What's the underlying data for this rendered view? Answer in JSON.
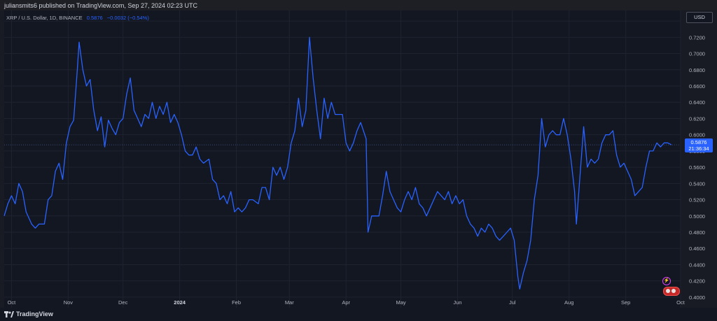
{
  "header": {
    "publisher_text": "juliansmits6 published on TradingView.com, Sep 27, 2024 02:23 UTC"
  },
  "legend": {
    "symbol": "XRP / U.S. Dollar, 1D, BINANCE",
    "last_price": "0.5876",
    "change": "−0.0032 (−0.54%)"
  },
  "currency_button": "USD",
  "last_price_tag": {
    "price": "0.5876",
    "countdown": "21:36:34"
  },
  "footer": {
    "brand": "TradingView"
  },
  "colors": {
    "line": "#2962ff",
    "background": "#131722",
    "grid": "#1f2330",
    "axis_text": "#b2b5be",
    "price_tag": "#2962ff"
  },
  "chart_data": {
    "type": "line",
    "title": "",
    "series": [
      {
        "name": "XRP / U.S. Dollar",
        "points": [
          [
            "2023-09-27",
            0.5
          ],
          [
            "2023-09-29",
            0.515
          ],
          [
            "2023-10-01",
            0.525
          ],
          [
            "2023-10-03",
            0.515
          ],
          [
            "2023-10-05",
            0.54
          ],
          [
            "2023-10-07",
            0.53
          ],
          [
            "2023-10-09",
            0.505
          ],
          [
            "2023-10-12",
            0.49
          ],
          [
            "2023-10-14",
            0.485
          ],
          [
            "2023-10-16",
            0.49
          ],
          [
            "2023-10-19",
            0.49
          ],
          [
            "2023-10-21",
            0.52
          ],
          [
            "2023-10-23",
            0.525
          ],
          [
            "2023-10-25",
            0.555
          ],
          [
            "2023-10-27",
            0.565
          ],
          [
            "2023-10-29",
            0.545
          ],
          [
            "2023-10-31",
            0.59
          ],
          [
            "2023-11-02",
            0.61
          ],
          [
            "2023-11-04",
            0.618
          ],
          [
            "2023-11-06",
            0.68
          ],
          [
            "2023-11-07",
            0.714
          ],
          [
            "2023-11-09",
            0.68
          ],
          [
            "2023-11-11",
            0.66
          ],
          [
            "2023-11-13",
            0.668
          ],
          [
            "2023-11-15",
            0.63
          ],
          [
            "2023-11-17",
            0.605
          ],
          [
            "2023-11-19",
            0.622
          ],
          [
            "2023-11-21",
            0.585
          ],
          [
            "2023-11-23",
            0.618
          ],
          [
            "2023-11-25",
            0.608
          ],
          [
            "2023-11-27",
            0.6
          ],
          [
            "2023-11-29",
            0.615
          ],
          [
            "2023-12-01",
            0.62
          ],
          [
            "2023-12-03",
            0.65
          ],
          [
            "2023-12-05",
            0.67
          ],
          [
            "2023-12-07",
            0.63
          ],
          [
            "2023-12-09",
            0.62
          ],
          [
            "2023-12-11",
            0.61
          ],
          [
            "2023-12-13",
            0.625
          ],
          [
            "2023-12-15",
            0.62
          ],
          [
            "2023-12-17",
            0.64
          ],
          [
            "2023-12-19",
            0.62
          ],
          [
            "2023-12-21",
            0.635
          ],
          [
            "2023-12-23",
            0.625
          ],
          [
            "2023-12-25",
            0.64
          ],
          [
            "2023-12-27",
            0.615
          ],
          [
            "2023-12-29",
            0.625
          ],
          [
            "2023-12-31",
            0.615
          ],
          [
            "2024-01-02",
            0.6
          ],
          [
            "2024-01-04",
            0.58
          ],
          [
            "2024-01-06",
            0.575
          ],
          [
            "2024-01-08",
            0.575
          ],
          [
            "2024-01-10",
            0.585
          ],
          [
            "2024-01-12",
            0.57
          ],
          [
            "2024-01-14",
            0.565
          ],
          [
            "2024-01-17",
            0.57
          ],
          [
            "2024-01-19",
            0.545
          ],
          [
            "2024-01-21",
            0.54
          ],
          [
            "2024-01-23",
            0.52
          ],
          [
            "2024-01-25",
            0.525
          ],
          [
            "2024-01-27",
            0.515
          ],
          [
            "2024-01-29",
            0.53
          ],
          [
            "2024-01-31",
            0.505
          ],
          [
            "2024-02-02",
            0.51
          ],
          [
            "2024-02-04",
            0.505
          ],
          [
            "2024-02-06",
            0.51
          ],
          [
            "2024-02-08",
            0.52
          ],
          [
            "2024-02-10",
            0.52
          ],
          [
            "2024-02-13",
            0.515
          ],
          [
            "2024-02-15",
            0.535
          ],
          [
            "2024-02-17",
            0.535
          ],
          [
            "2024-02-19",
            0.52
          ],
          [
            "2024-02-21",
            0.56
          ],
          [
            "2024-02-23",
            0.55
          ],
          [
            "2024-02-25",
            0.56
          ],
          [
            "2024-02-27",
            0.545
          ],
          [
            "2024-02-29",
            0.56
          ],
          [
            "2024-03-02",
            0.59
          ],
          [
            "2024-03-04",
            0.605
          ],
          [
            "2024-03-06",
            0.645
          ],
          [
            "2024-03-08",
            0.61
          ],
          [
            "2024-03-10",
            0.63
          ],
          [
            "2024-03-12",
            0.72
          ],
          [
            "2024-03-14",
            0.67
          ],
          [
            "2024-03-16",
            0.63
          ],
          [
            "2024-03-18",
            0.595
          ],
          [
            "2024-03-20",
            0.645
          ],
          [
            "2024-03-22",
            0.62
          ],
          [
            "2024-03-24",
            0.64
          ],
          [
            "2024-03-26",
            0.625
          ],
          [
            "2024-03-28",
            0.625
          ],
          [
            "2024-03-30",
            0.625
          ],
          [
            "2024-04-01",
            0.59
          ],
          [
            "2024-04-03",
            0.58
          ],
          [
            "2024-04-05",
            0.59
          ],
          [
            "2024-04-07",
            0.605
          ],
          [
            "2024-04-09",
            0.615
          ],
          [
            "2024-04-12",
            0.595
          ],
          [
            "2024-04-13",
            0.48
          ],
          [
            "2024-04-15",
            0.5
          ],
          [
            "2024-04-17",
            0.5
          ],
          [
            "2024-04-19",
            0.5
          ],
          [
            "2024-04-21",
            0.525
          ],
          [
            "2024-04-23",
            0.555
          ],
          [
            "2024-04-25",
            0.53
          ],
          [
            "2024-04-27",
            0.52
          ],
          [
            "2024-04-29",
            0.51
          ],
          [
            "2024-05-01",
            0.505
          ],
          [
            "2024-05-03",
            0.52
          ],
          [
            "2024-05-05",
            0.53
          ],
          [
            "2024-05-07",
            0.52
          ],
          [
            "2024-05-09",
            0.535
          ],
          [
            "2024-05-11",
            0.515
          ],
          [
            "2024-05-13",
            0.51
          ],
          [
            "2024-05-15",
            0.5
          ],
          [
            "2024-05-17",
            0.51
          ],
          [
            "2024-05-19",
            0.52
          ],
          [
            "2024-05-21",
            0.53
          ],
          [
            "2024-05-23",
            0.525
          ],
          [
            "2024-05-25",
            0.52
          ],
          [
            "2024-05-27",
            0.53
          ],
          [
            "2024-05-29",
            0.515
          ],
          [
            "2024-05-31",
            0.525
          ],
          [
            "2024-06-02",
            0.515
          ],
          [
            "2024-06-04",
            0.52
          ],
          [
            "2024-06-06",
            0.5
          ],
          [
            "2024-06-08",
            0.49
          ],
          [
            "2024-06-10",
            0.485
          ],
          [
            "2024-06-12",
            0.475
          ],
          [
            "2024-06-14",
            0.485
          ],
          [
            "2024-06-16",
            0.48
          ],
          [
            "2024-06-18",
            0.49
          ],
          [
            "2024-06-20",
            0.485
          ],
          [
            "2024-06-22",
            0.475
          ],
          [
            "2024-06-24",
            0.47
          ],
          [
            "2024-06-26",
            0.475
          ],
          [
            "2024-06-28",
            0.48
          ],
          [
            "2024-06-30",
            0.485
          ],
          [
            "2024-07-02",
            0.47
          ],
          [
            "2024-07-04",
            0.425
          ],
          [
            "2024-07-05",
            0.41
          ],
          [
            "2024-07-07",
            0.43
          ],
          [
            "2024-07-09",
            0.445
          ],
          [
            "2024-07-11",
            0.47
          ],
          [
            "2024-07-13",
            0.52
          ],
          [
            "2024-07-15",
            0.55
          ],
          [
            "2024-07-17",
            0.62
          ],
          [
            "2024-07-19",
            0.585
          ],
          [
            "2024-07-21",
            0.6
          ],
          [
            "2024-07-23",
            0.605
          ],
          [
            "2024-07-25",
            0.6
          ],
          [
            "2024-07-27",
            0.6
          ],
          [
            "2024-07-29",
            0.62
          ],
          [
            "2024-07-31",
            0.6
          ],
          [
            "2024-08-02",
            0.57
          ],
          [
            "2024-08-04",
            0.53
          ],
          [
            "2024-08-05",
            0.49
          ],
          [
            "2024-08-07",
            0.55
          ],
          [
            "2024-08-09",
            0.61
          ],
          [
            "2024-08-11",
            0.56
          ],
          [
            "2024-08-13",
            0.57
          ],
          [
            "2024-08-15",
            0.565
          ],
          [
            "2024-08-17",
            0.57
          ],
          [
            "2024-08-19",
            0.59
          ],
          [
            "2024-08-21",
            0.6
          ],
          [
            "2024-08-23",
            0.6
          ],
          [
            "2024-08-25",
            0.605
          ],
          [
            "2024-08-27",
            0.575
          ],
          [
            "2024-08-29",
            0.56
          ],
          [
            "2024-08-31",
            0.565
          ],
          [
            "2024-09-02",
            0.555
          ],
          [
            "2024-09-04",
            0.545
          ],
          [
            "2024-09-06",
            0.525
          ],
          [
            "2024-09-08",
            0.53
          ],
          [
            "2024-09-10",
            0.535
          ],
          [
            "2024-09-12",
            0.56
          ],
          [
            "2024-09-14",
            0.58
          ],
          [
            "2024-09-16",
            0.58
          ],
          [
            "2024-09-18",
            0.59
          ],
          [
            "2024-09-20",
            0.585
          ],
          [
            "2024-09-22",
            0.59
          ],
          [
            "2024-09-24",
            0.59
          ],
          [
            "2024-09-26",
            0.5876
          ]
        ]
      }
    ],
    "x_tick_labels": [
      {
        "date": "2023-10-01",
        "label": "Oct"
      },
      {
        "date": "2023-11-01",
        "label": "Nov"
      },
      {
        "date": "2023-12-01",
        "label": "Dec"
      },
      {
        "date": "2024-01-01",
        "label": "2024"
      },
      {
        "date": "2024-02-01",
        "label": "Feb"
      },
      {
        "date": "2024-03-01",
        "label": "Mar"
      },
      {
        "date": "2024-04-01",
        "label": "Apr"
      },
      {
        "date": "2024-05-01",
        "label": "May"
      },
      {
        "date": "2024-06-01",
        "label": "Jun"
      },
      {
        "date": "2024-07-01",
        "label": "Jul"
      },
      {
        "date": "2024-08-01",
        "label": "Aug"
      },
      {
        "date": "2024-09-01",
        "label": "Sep"
      },
      {
        "date": "2024-10-01",
        "label": "Oct"
      }
    ],
    "y_ticks": [
      "0.4000",
      "0.4200",
      "0.4400",
      "0.4600",
      "0.4800",
      "0.5000",
      "0.5200",
      "0.5400",
      "0.5600",
      "0.5800",
      "0.6000",
      "0.6200",
      "0.6400",
      "0.6600",
      "0.6800",
      "0.7000",
      "0.7200",
      "0.7400"
    ],
    "xlim": [
      "2023-09-27",
      "2024-10-01"
    ],
    "ylim": [
      0.387,
      0.753
    ],
    "grid": true,
    "axis_side": "right"
  }
}
